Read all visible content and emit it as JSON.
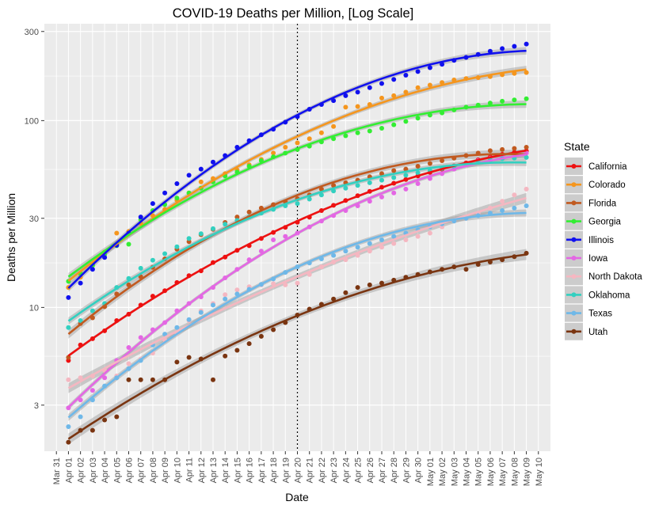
{
  "chart_data": {
    "type": "scatter",
    "title": "COVID-19 Deaths per Million, [Log Scale]",
    "xlabel": "Date",
    "ylabel": "Deaths per Million",
    "yscale": "log",
    "ylim": [
      1.7,
      330
    ],
    "xlim": [
      "2020-03-30",
      "2020-05-11"
    ],
    "y_ticks": [
      3,
      10,
      30,
      100,
      300
    ],
    "x_ticks": [
      "2020-03-31",
      "2020-04-01",
      "2020-04-02",
      "2020-04-03",
      "2020-04-04",
      "2020-04-05",
      "2020-04-06",
      "2020-04-07",
      "2020-04-08",
      "2020-04-09",
      "2020-04-10",
      "2020-04-11",
      "2020-04-12",
      "2020-04-13",
      "2020-04-14",
      "2020-04-15",
      "2020-04-16",
      "2020-04-17",
      "2020-04-18",
      "2020-04-19",
      "2020-04-20",
      "2020-04-21",
      "2020-04-22",
      "2020-04-23",
      "2020-04-24",
      "2020-04-25",
      "2020-04-26",
      "2020-04-27",
      "2020-04-28",
      "2020-04-29",
      "2020-04-30",
      "2020-05-01",
      "2020-05-02",
      "2020-05-03",
      "2020-05-04",
      "2020-05-05",
      "2020-05-06",
      "2020-05-07",
      "2020-05-08",
      "2020-05-09",
      "2020-05-10"
    ],
    "x_tick_labels": [
      "Mar 31",
      "Apr 01",
      "Apr 02",
      "Apr 03",
      "Apr 04",
      "Apr 05",
      "Apr 06",
      "Apr 07",
      "Apr 08",
      "Apr 09",
      "Apr 10",
      "Apr 11",
      "Apr 12",
      "Apr 13",
      "Apr 14",
      "Apr 15",
      "Apr 16",
      "Apr 17",
      "Apr 18",
      "Apr 19",
      "Apr 20",
      "Apr 21",
      "Apr 22",
      "Apr 23",
      "Apr 24",
      "Apr 25",
      "Apr 26",
      "Apr 27",
      "Apr 28",
      "Apr 29",
      "Apr 30",
      "May 01",
      "May 02",
      "May 03",
      "May 04",
      "May 05",
      "May 06",
      "May 07",
      "May 08",
      "May 09",
      "May 10"
    ],
    "vline_date": "2020-04-20",
    "grid": true,
    "legend_title": "State",
    "legend_position": "right",
    "dates": [
      "2020-04-01",
      "2020-04-02",
      "2020-04-03",
      "2020-04-04",
      "2020-04-05",
      "2020-04-06",
      "2020-04-07",
      "2020-04-08",
      "2020-04-09",
      "2020-04-10",
      "2020-04-11",
      "2020-04-12",
      "2020-04-13",
      "2020-04-14",
      "2020-04-15",
      "2020-04-16",
      "2020-04-17",
      "2020-04-18",
      "2020-04-19",
      "2020-04-20",
      "2020-04-21",
      "2020-04-22",
      "2020-04-23",
      "2020-04-24",
      "2020-04-25",
      "2020-04-26",
      "2020-04-27",
      "2020-04-28",
      "2020-04-29",
      "2020-04-30",
      "2020-05-01",
      "2020-05-02",
      "2020-05-03",
      "2020-05-04",
      "2020-05-05",
      "2020-05-06",
      "2020-05-07",
      "2020-05-08",
      "2020-05-09"
    ],
    "series": [
      {
        "name": "California",
        "color": "#ee1111",
        "values": [
          5.2,
          6.3,
          6.8,
          7.5,
          8.5,
          9.2,
          10.3,
          11.5,
          12.3,
          13.6,
          14.8,
          15.7,
          17.4,
          18.6,
          20.2,
          21.4,
          23.4,
          25.2,
          26.8,
          28.6,
          30.4,
          33,
          35.2,
          37.4,
          39.6,
          41.8,
          44,
          46.2,
          48.4,
          50.6,
          52.8,
          55,
          57.2,
          59.4,
          61.6,
          63.8,
          66,
          67.6,
          68.8
        ]
      },
      {
        "name": "Colorado",
        "color": "#f5961e",
        "values": [
          12.8,
          14.5,
          17,
          19.8,
          25,
          25.5,
          28.2,
          31,
          33.5,
          37.5,
          41,
          47,
          49,
          52,
          54.5,
          58,
          62,
          67,
          72,
          76,
          80,
          86,
          93,
          118,
          119,
          122,
          132,
          136,
          142,
          150,
          155,
          160,
          165,
          168,
          170,
          172,
          176,
          179,
          181
        ]
      },
      {
        "name": "Florida",
        "color": "#c15a20",
        "values": [
          5.4,
          8.2,
          8.8,
          10.1,
          11.8,
          13.2,
          14.6,
          16.4,
          18.2,
          20.5,
          22.5,
          24.5,
          26.2,
          28.5,
          30.5,
          32.4,
          34,
          35.5,
          36.8,
          38.2,
          40,
          43,
          45,
          46.5,
          48,
          50,
          52,
          54,
          55,
          57,
          59,
          61,
          63,
          65,
          67,
          69,
          70,
          71,
          72
        ]
      },
      {
        "name": "Georgia",
        "color": "#33ee33",
        "values": [
          13.8,
          15.2,
          16.8,
          19.2,
          21.4,
          21.8,
          29.5,
          33,
          35.5,
          38.5,
          41,
          43.5,
          47,
          50.5,
          53,
          57,
          61,
          64,
          67,
          70,
          73,
          77,
          80,
          83,
          86,
          88,
          91,
          95,
          99,
          103,
          107,
          110,
          114,
          118,
          121,
          124,
          127,
          129,
          131
        ]
      },
      {
        "name": "Illinois",
        "color": "#1111ee",
        "values": [
          11.3,
          13.5,
          16,
          18.5,
          21.5,
          25,
          30.5,
          36,
          41,
          46,
          51,
          55,
          60,
          65,
          72,
          78,
          84,
          90,
          98,
          105,
          115,
          122,
          128,
          136,
          142,
          150,
          158,
          166,
          175,
          183,
          192,
          200,
          210,
          218,
          226,
          235,
          243,
          250,
          257
        ]
      },
      {
        "name": "Iowa",
        "color": "#e467e4",
        "values": [
          2.9,
          3.2,
          3.6,
          4.2,
          5.2,
          6.1,
          6.9,
          7.6,
          8.3,
          9.6,
          10.5,
          11.4,
          12.8,
          14.4,
          16,
          18,
          20,
          23,
          24,
          25,
          27,
          29,
          31,
          33,
          35,
          37,
          39,
          41,
          43,
          46,
          49,
          52,
          55,
          58,
          61,
          63,
          65,
          66,
          67
        ]
      },
      {
        "name": "North Dakota",
        "color": "#f5b7c1",
        "values": [
          4.1,
          4.2,
          4.3,
          4.6,
          4.3,
          5,
          5.3,
          5.7,
          6.7,
          7.3,
          8.5,
          9.6,
          10.5,
          11.7,
          12.4,
          12.9,
          13.2,
          13.4,
          13.2,
          13.5,
          15,
          16.5,
          17.5,
          18,
          19,
          20,
          21,
          22,
          23,
          24,
          25,
          27,
          29,
          30,
          32,
          34,
          37,
          40,
          43
        ]
      },
      {
        "name": "Oklahoma",
        "color": "#33d0c0",
        "values": [
          7.8,
          8.5,
          9.6,
          10.5,
          12.8,
          14.3,
          16.2,
          17.9,
          19.4,
          21.1,
          23.4,
          24.8,
          26.4,
          27.9,
          29.2,
          30.5,
          32,
          33.5,
          35,
          36,
          38,
          40,
          42,
          43.5,
          45,
          46.5,
          48,
          49.5,
          51,
          52.5,
          54,
          55.5,
          57,
          58.5,
          60,
          61.5,
          62.5,
          63,
          63.5
        ]
      },
      {
        "name": "Texas",
        "color": "#6fb8e8",
        "values": [
          2.3,
          2.6,
          3.2,
          3.8,
          4.2,
          4.7,
          5.2,
          6.3,
          7.2,
          7.8,
          8.6,
          9.4,
          10.3,
          11.1,
          11.8,
          12.5,
          13.3,
          14.2,
          15.4,
          16.5,
          17.3,
          18.2,
          19,
          20,
          21,
          22,
          23,
          24,
          25,
          26,
          27,
          28,
          29,
          30,
          31,
          32,
          33,
          34,
          35
        ]
      },
      {
        "name": "Utah",
        "color": "#7a3511",
        "values": [
          1.9,
          2.2,
          2.2,
          2.5,
          2.6,
          4.1,
          4.1,
          4.1,
          4.1,
          5.1,
          5.4,
          5.3,
          4.1,
          5.5,
          5.9,
          6.4,
          7,
          7.6,
          8.3,
          9.1,
          9.8,
          10.4,
          11.1,
          12,
          12.8,
          13.2,
          13.5,
          14,
          14.5,
          15,
          15.5,
          16,
          16.5,
          16,
          17,
          17.5,
          18,
          18.7,
          19.5
        ]
      }
    ]
  }
}
